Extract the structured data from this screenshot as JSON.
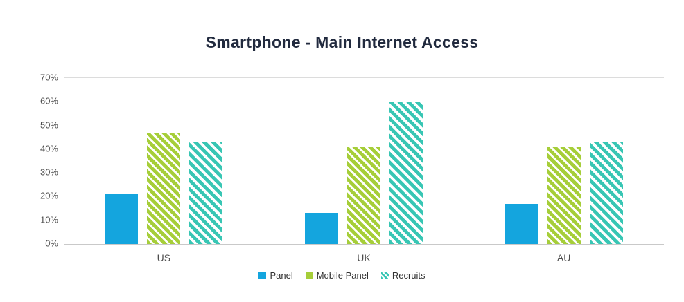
{
  "chart_data": {
    "type": "bar",
    "title": "Smartphone - Main Internet Access",
    "categories": [
      "US",
      "UK",
      "AU"
    ],
    "series": [
      {
        "name": "Panel",
        "color": "#14A5DE",
        "bar_style": "solid",
        "marker_style": "solid",
        "values": [
          21,
          13,
          17
        ]
      },
      {
        "name": "Mobile Panel",
        "color": "#A6CE39",
        "bar_style": "hatch",
        "marker_style": "solid",
        "values": [
          47,
          41,
          41
        ]
      },
      {
        "name": "Recruits",
        "color": "#38C6B4",
        "bar_style": "hatch",
        "marker_style": "hatch",
        "values": [
          43,
          60,
          43
        ]
      }
    ],
    "xlabel": "",
    "ylabel": "",
    "ylim": [
      0,
      70
    ],
    "ytick_labels": [
      "0%",
      "10%",
      "20%",
      "30%",
      "40%",
      "50%",
      "60%",
      "70%"
    ],
    "grid": false,
    "legend_position": "bottom"
  }
}
